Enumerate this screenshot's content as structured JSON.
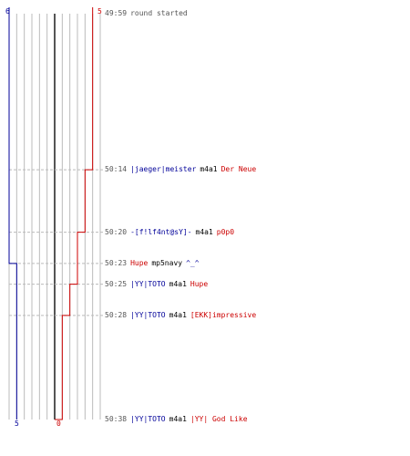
{
  "colors": {
    "team_blue": "#000099",
    "team_red": "#cc0000",
    "grid": "#bbbbbb",
    "center_line": "#555555",
    "dashed_guide": "#bbbbbb",
    "time_text": "#555555",
    "neutral_text": "#000000"
  },
  "scores": {
    "blue_start": "6",
    "red_start": "5",
    "blue_end": "5",
    "red_end": "0"
  },
  "chart_data": {
    "type": "line",
    "y_axis": "time",
    "x_range": [
      -6,
      6
    ],
    "grid_columns": 12,
    "series": [
      {
        "color": "#000099",
        "points": [
          {
            "time": "49:59",
            "value": 6
          },
          {
            "time": "50:23",
            "value": 5
          },
          {
            "time": "50:38",
            "value": 5
          }
        ]
      },
      {
        "color": "#cc0000",
        "points": [
          {
            "time": "49:59",
            "value": 5
          },
          {
            "time": "50:14",
            "value": 4
          },
          {
            "time": "50:20",
            "value": 3
          },
          {
            "time": "50:25",
            "value": 2
          },
          {
            "time": "50:28",
            "value": 1
          },
          {
            "time": "50:38",
            "value": 0
          }
        ]
      }
    ]
  },
  "events": [
    {
      "time": "49:59",
      "dashed": false,
      "parts": [
        {
          "text": "round started",
          "color": "gray"
        }
      ]
    },
    {
      "time": "50:14",
      "dashed": true,
      "parts": [
        {
          "text": "|jaeger|meister",
          "color": "blue"
        },
        {
          "text": "m4a1",
          "color": "black"
        },
        {
          "text": "Der Neue",
          "color": "red"
        }
      ]
    },
    {
      "time": "50:20",
      "dashed": true,
      "parts": [
        {
          "text": "-[f!lf4nt@sY]-",
          "color": "blue"
        },
        {
          "text": "m4a1",
          "color": "black"
        },
        {
          "text": "p0p0",
          "color": "red"
        }
      ]
    },
    {
      "time": "50:23",
      "dashed": true,
      "parts": [
        {
          "text": "Hupe",
          "color": "red"
        },
        {
          "text": "mp5navy",
          "color": "black"
        },
        {
          "text": "^_^",
          "color": "blue"
        }
      ]
    },
    {
      "time": "50:25",
      "dashed": true,
      "parts": [
        {
          "text": "|YY|TOTO",
          "color": "blue"
        },
        {
          "text": "m4a1",
          "color": "black"
        },
        {
          "text": "Hupe",
          "color": "red"
        }
      ]
    },
    {
      "time": "50:28",
      "dashed": true,
      "parts": [
        {
          "text": "|YY|TOTO",
          "color": "blue"
        },
        {
          "text": "m4a1",
          "color": "black"
        },
        {
          "text": "[EKK]impressive",
          "color": "red"
        }
      ]
    },
    {
      "time": "50:38",
      "dashed": false,
      "parts": [
        {
          "text": "|YY|TOTO",
          "color": "blue"
        },
        {
          "text": "m4a1",
          "color": "black"
        },
        {
          "text": "|YY| God Like",
          "color": "red"
        }
      ]
    }
  ]
}
